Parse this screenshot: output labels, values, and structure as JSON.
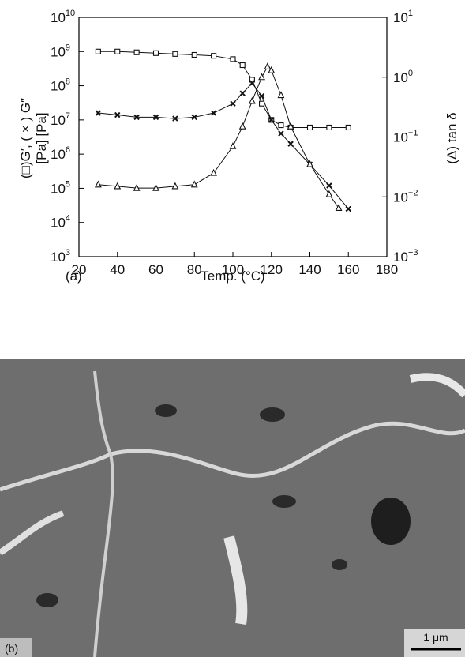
{
  "chart_data": {
    "type": "line",
    "panel_label": "(a)",
    "xlabel": "Temp. (°C)",
    "ylabel": [
      "(□)G′, ( × ) G″",
      "[Pa]  [Pa]"
    ],
    "y2label": "(Δ) tan δ",
    "xlim": [
      20,
      180
    ],
    "xticks": [
      20,
      40,
      60,
      80,
      100,
      120,
      140,
      160,
      180
    ],
    "ylim": [
      1000,
      10000000000
    ],
    "yscale": "log",
    "yticks": [
      {
        "value": 1000,
        "label": "10",
        "exponent": "3"
      },
      {
        "value": 10000,
        "label": "10",
        "exponent": "4"
      },
      {
        "value": 100000,
        "label": "10",
        "exponent": "5"
      },
      {
        "value": 1000000,
        "label": "10",
        "exponent": "6"
      },
      {
        "value": 10000000,
        "label": "10",
        "exponent": "7"
      },
      {
        "value": 100000000,
        "label": "10",
        "exponent": "8"
      },
      {
        "value": 1000000000,
        "label": "10",
        "exponent": "9"
      },
      {
        "value": 10000000000,
        "label": "10",
        "exponent": "10"
      }
    ],
    "y2lim": [
      0.001,
      10
    ],
    "y2scale": "log",
    "y2ticks": [
      {
        "value": 0.001,
        "label": "10",
        "exponent": "−3"
      },
      {
        "value": 0.01,
        "label": "10",
        "exponent": "−2"
      },
      {
        "value": 0.1,
        "label": "10",
        "exponent": "−1"
      },
      {
        "value": 1,
        "label": "10",
        "exponent": "0"
      },
      {
        "value": 10,
        "label": "10",
        "exponent": "1"
      }
    ],
    "series": [
      {
        "marker": "square",
        "color": "#111111",
        "x": [
          30,
          40,
          50,
          60,
          70,
          80,
          90,
          100,
          105,
          110,
          115,
          120,
          125,
          130,
          140,
          150,
          160
        ],
        "values": [
          1000000000,
          1000000000,
          950000000,
          900000000,
          850000000,
          800000000,
          750000000,
          600000000,
          400000000,
          150000000,
          30000000,
          10000000,
          7000000,
          6000000,
          6000000,
          6000000,
          6000000
        ]
      },
      {
        "marker": "x",
        "color": "#111111",
        "x": [
          30,
          40,
          50,
          60,
          70,
          80,
          90,
          100,
          105,
          110,
          115,
          120,
          125,
          130,
          140,
          150,
          160
        ],
        "values": [
          16000000,
          14000000,
          12000000,
          12000000,
          11000000,
          12000000,
          16000000,
          30000000,
          60000000,
          120000000,
          50000000,
          10000000,
          4000000,
          2000000,
          500000,
          120000,
          25000
        ]
      },
      {
        "marker": "triangle",
        "color": "#111111",
        "axis": "y2",
        "x": [
          30,
          40,
          50,
          60,
          70,
          80,
          90,
          100,
          105,
          110,
          115,
          118,
          120,
          125,
          130,
          140,
          150,
          155
        ],
        "values": [
          0.016,
          0.015,
          0.014,
          0.014,
          0.015,
          0.016,
          0.025,
          0.07,
          0.15,
          0.4,
          1.0,
          1.5,
          1.3,
          0.5,
          0.15,
          0.035,
          0.011,
          0.0065
        ]
      }
    ]
  },
  "micrograph": {
    "label": "(b)",
    "scale_bar": "1 μm"
  }
}
